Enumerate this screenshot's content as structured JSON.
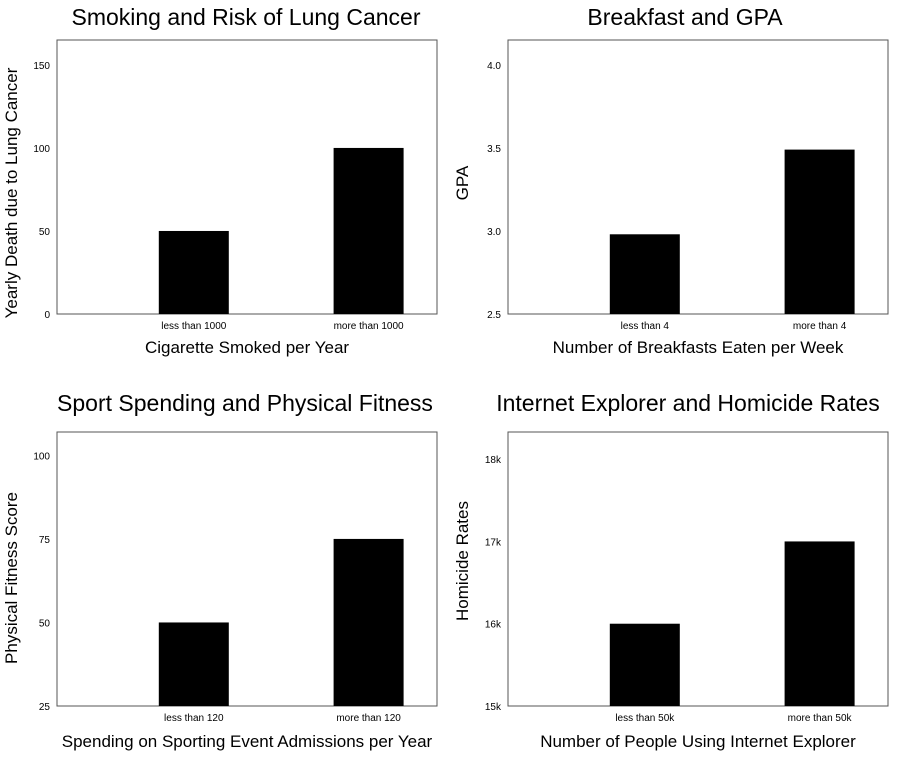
{
  "chart_data": [
    {
      "type": "bar",
      "title": "Smoking and Risk of Lung Cancer",
      "xlabel": "Cigarette Smoked per Year",
      "ylabel": "Yearly Death due to Lung Cancer",
      "categories": [
        "less than 1000",
        "more than 1000"
      ],
      "values": [
        50,
        100
      ],
      "ylim": [
        0,
        165
      ],
      "yticks": [
        0,
        50,
        100,
        150
      ],
      "ytick_labels": [
        "0",
        "50",
        "100",
        "150"
      ],
      "bar_color": "#000000",
      "grid": false
    },
    {
      "type": "bar",
      "title": "Breakfast and GPA",
      "xlabel": "Number of Breakfasts Eaten per Week",
      "ylabel": "GPA",
      "categories": [
        "less than 4",
        "more than 4"
      ],
      "values": [
        2.98,
        3.49
      ],
      "ylim": [
        2.5,
        4.15
      ],
      "yticks": [
        2.5,
        3.0,
        3.5,
        4.0
      ],
      "ytick_labels": [
        "2.5",
        "3.0",
        "3.5",
        "4.0"
      ],
      "bar_color": "#000000",
      "grid": false
    },
    {
      "type": "bar",
      "title": "Sport Spending and Physical Fitness",
      "xlabel": "Spending on Sporting Event Admissions per Year",
      "ylabel": "Physical Fitness Score",
      "categories": [
        "less than 120",
        "more than 120"
      ],
      "values": [
        50,
        75
      ],
      "ylim": [
        25,
        107
      ],
      "yticks": [
        25,
        50,
        75,
        100
      ],
      "ytick_labels": [
        "25",
        "50",
        "75",
        "100"
      ],
      "bar_color": "#000000",
      "grid": false
    },
    {
      "type": "bar",
      "title": "Internet Explorer and Homicide Rates",
      "xlabel": "Number of People Using Internet Explorer",
      "ylabel": "Homicide Rates",
      "categories": [
        "less than 50k",
        "more than 50k"
      ],
      "values": [
        16000,
        17000
      ],
      "ylim": [
        15000,
        18330
      ],
      "yticks": [
        15000,
        16000,
        17000,
        18000
      ],
      "ytick_labels": [
        "15k",
        "16k",
        "17k",
        "18k"
      ],
      "bar_color": "#000000",
      "grid": false
    }
  ]
}
